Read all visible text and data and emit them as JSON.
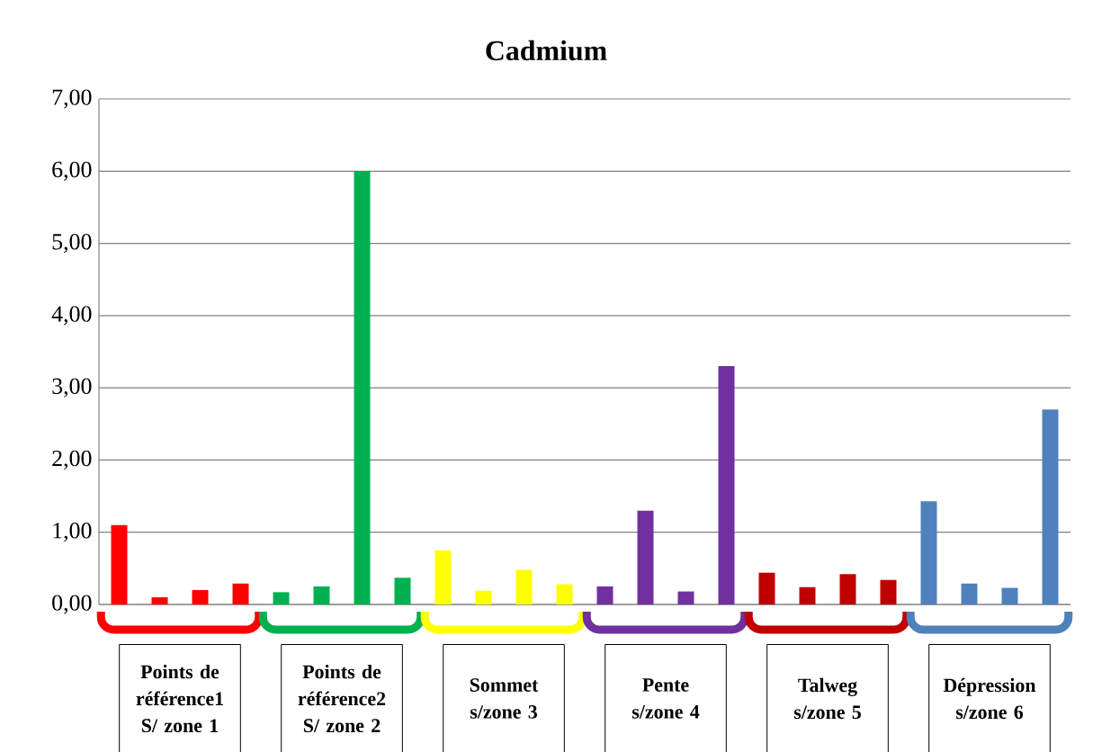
{
  "chart_data": {
    "type": "bar",
    "title": "Cadmium",
    "categories": [
      null,
      null,
      null,
      null,
      null,
      null,
      null,
      null,
      null,
      null,
      null,
      null,
      null,
      null,
      null,
      null,
      null,
      null,
      null,
      null,
      null,
      null,
      null,
      null
    ],
    "values": [
      1.1,
      0.1,
      0.2,
      0.29,
      0.17,
      0.25,
      6.0,
      0.37,
      0.75,
      0.19,
      0.48,
      0.28,
      0.25,
      1.3,
      0.18,
      3.3,
      0.44,
      0.24,
      0.42,
      0.34,
      1.43,
      0.29,
      0.23,
      2.7
    ],
    "colors": [
      "#ff0000",
      "#ff0000",
      "#ff0000",
      "#ff0000",
      "#00b050",
      "#00b050",
      "#00b050",
      "#00b050",
      "#ffff00",
      "#ffff00",
      "#ffff00",
      "#ffff00",
      "#7030a0",
      "#7030a0",
      "#7030a0",
      "#7030a0",
      "#c00000",
      "#c00000",
      "#c00000",
      "#c00000",
      "#4f81bd",
      "#4f81bd",
      "#4f81bd",
      "#4f81bd"
    ],
    "ylim": [
      0,
      7
    ],
    "yticks": [
      {
        "value": 0,
        "label": "0,00"
      },
      {
        "value": 1,
        "label": "1,00"
      },
      {
        "value": 2,
        "label": "2,00"
      },
      {
        "value": 3,
        "label": "3,00"
      },
      {
        "value": 4,
        "label": "4,00"
      },
      {
        "value": 5,
        "label": "5,00"
      },
      {
        "value": 6,
        "label": "6,00"
      },
      {
        "value": 7,
        "label": "7,00"
      }
    ],
    "grid": "y",
    "annotations": [
      "Points de référence1 S/ zone 1",
      "Points de référence2 S/ zone 2",
      "Sommet s/zone 3",
      "Pente s/zone 4",
      "Talweg s/zone 5",
      "Dépression s/zone 6"
    ]
  }
}
